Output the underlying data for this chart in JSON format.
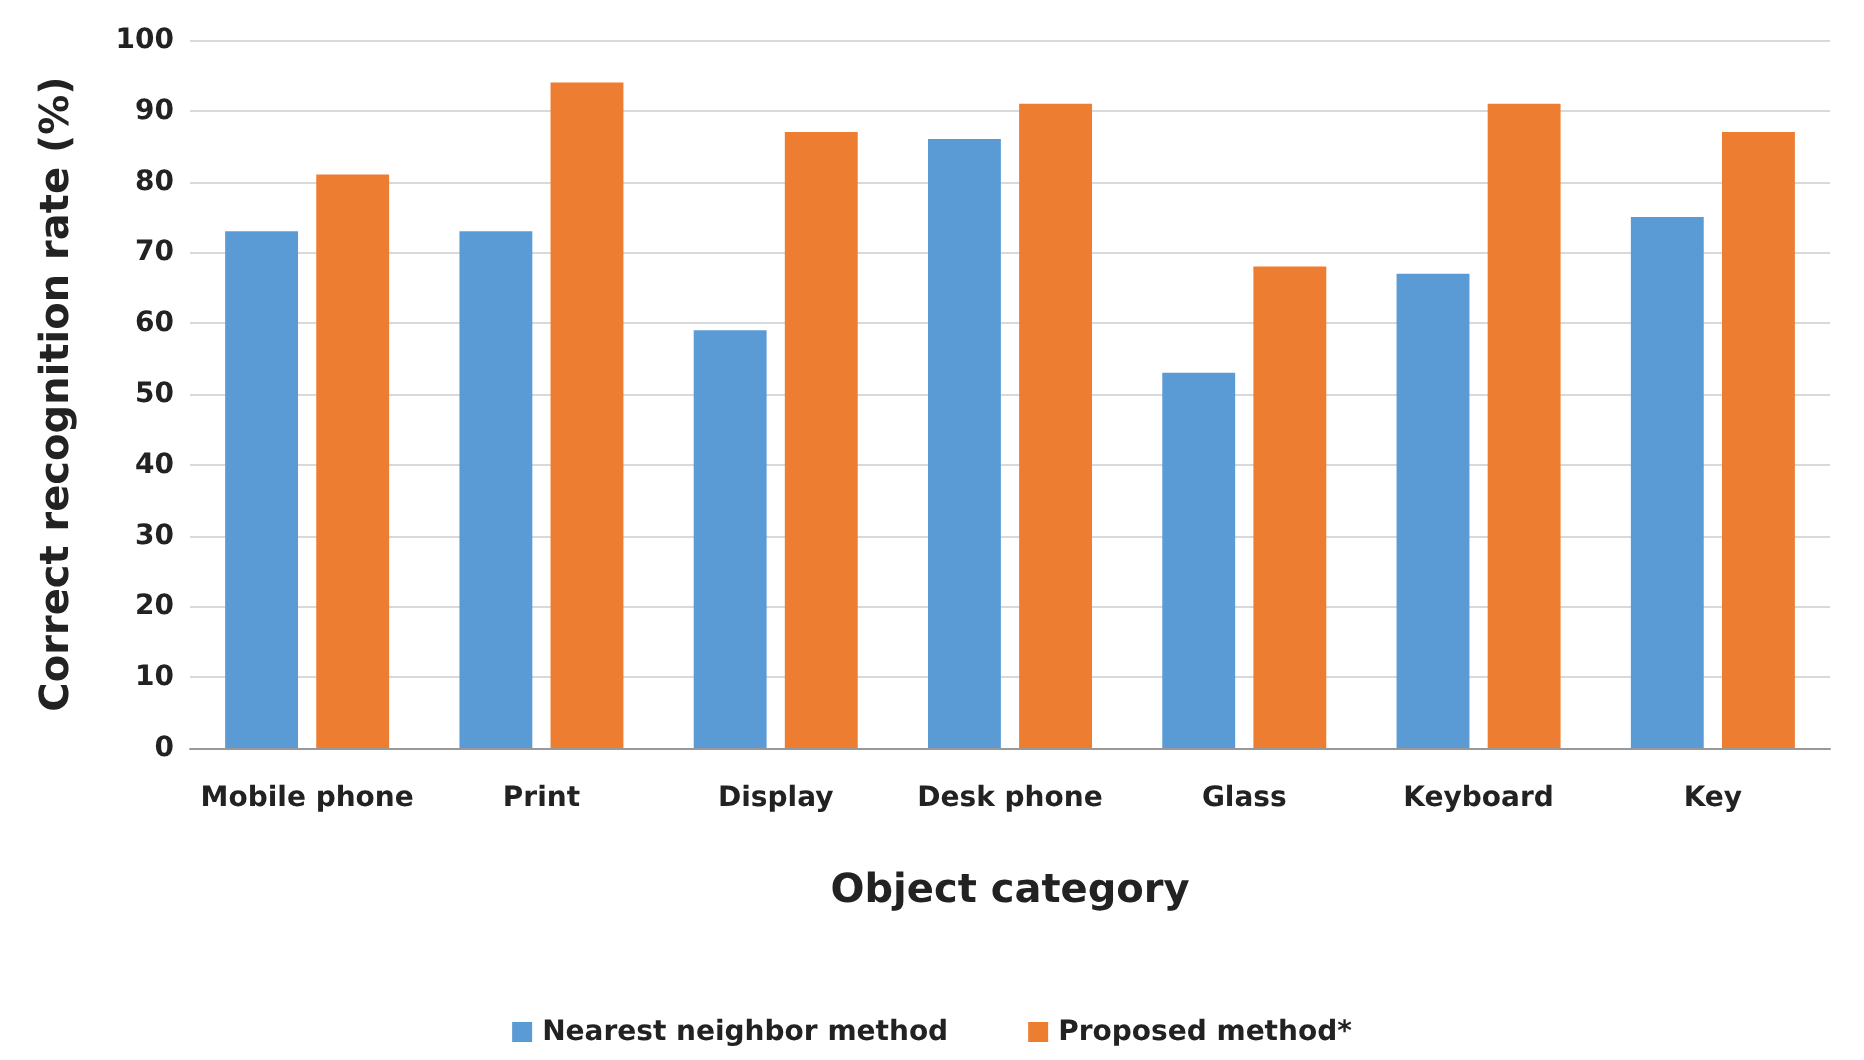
{
  "chart_data": {
    "type": "bar",
    "xlabel": "Object category",
    "ylabel": "Correct recognition rate (%)",
    "categories": [
      "Mobile phone",
      "Print",
      "Display",
      "Desk phone",
      "Glass",
      "Keyboard",
      "Key"
    ],
    "series": [
      {
        "name": "Nearest neighbor method",
        "color": "#5b9bd5",
        "values": [
          73,
          73,
          59,
          86,
          53,
          67,
          75
        ]
      },
      {
        "name": "Proposed method*",
        "color": "#ed7d31",
        "values": [
          81,
          94,
          87,
          91,
          68,
          91,
          87
        ]
      }
    ],
    "ylim": [
      0,
      100
    ],
    "yticks": [
      0,
      10,
      20,
      30,
      40,
      50,
      60,
      70,
      80,
      90,
      100
    ],
    "grid": "y",
    "legend": "bottom"
  }
}
